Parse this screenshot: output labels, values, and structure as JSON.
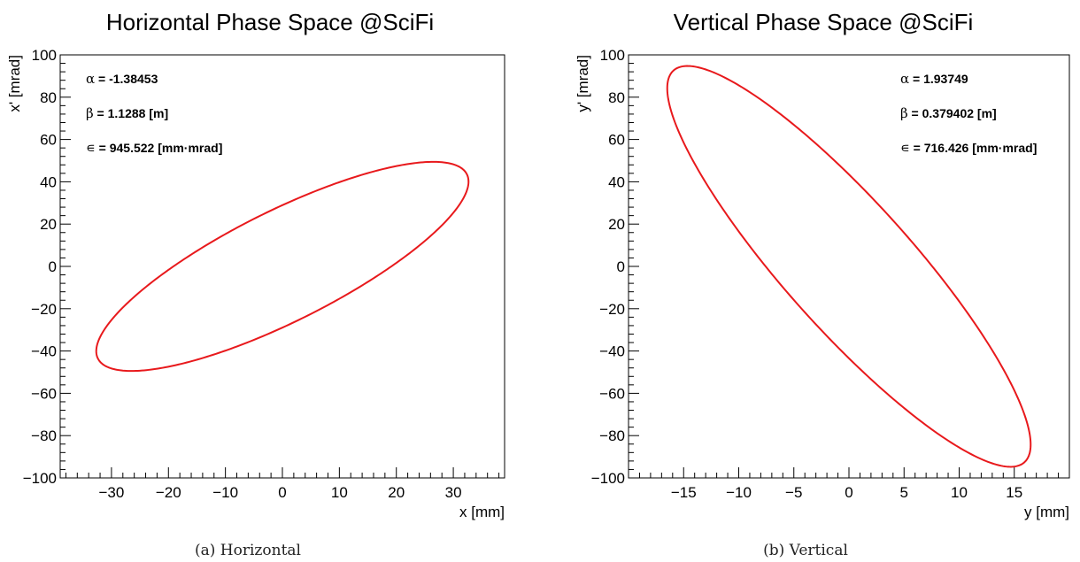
{
  "chart_data": [
    {
      "type": "line",
      "title": "Horizontal Phase Space @SciFi",
      "xlabel": "x [mm]",
      "ylabel": "x' [mrad]",
      "xlim": [
        -39,
        39
      ],
      "ylim": [
        -100,
        100
      ],
      "xticks": [
        -30,
        -20,
        -10,
        0,
        10,
        20,
        30
      ],
      "xtick_labels": [
        "−30",
        "−20",
        "−10",
        "0",
        "10",
        "20",
        "30"
      ],
      "yticks": [
        -100,
        -80,
        -60,
        -40,
        -20,
        0,
        20,
        40,
        60,
        80,
        100
      ],
      "ytick_labels": [
        "−100",
        "−80",
        "−60",
        "−40",
        "−20",
        "0",
        "20",
        "40",
        "60",
        "80",
        "100"
      ],
      "grid": false,
      "series_color": "#e8191c",
      "ellipse": {
        "alpha": -1.38453,
        "beta": 1.1288,
        "emittance": 945.522
      },
      "annotations": [
        {
          "symbol": "α",
          "text": " = -1.38453"
        },
        {
          "symbol": "β",
          "text": " = 1.1288 [m]"
        },
        {
          "symbol": "∊",
          "text": " = 945.522 [mm·mrad]"
        }
      ]
    },
    {
      "type": "line",
      "title": "Vertical Phase Space @SciFi",
      "xlabel": "y [mm]",
      "ylabel": "y' [mrad]",
      "xlim": [
        -20,
        20
      ],
      "ylim": [
        -100,
        100
      ],
      "xticks": [
        -15,
        -10,
        -5,
        0,
        5,
        10,
        15
      ],
      "xtick_labels": [
        "−15",
        "−10",
        "−5",
        "0",
        "5",
        "10",
        "15"
      ],
      "yticks": [
        -100,
        -80,
        -60,
        -40,
        -20,
        0,
        20,
        40,
        60,
        80,
        100
      ],
      "ytick_labels": [
        "−100",
        "−80",
        "−60",
        "−40",
        "−20",
        "0",
        "20",
        "40",
        "60",
        "80",
        "100"
      ],
      "grid": false,
      "series_color": "#e8191c",
      "ellipse": {
        "alpha": 1.93749,
        "beta": 0.379402,
        "emittance": 716.426
      },
      "annotations": [
        {
          "symbol": "α",
          "text": " = 1.93749"
        },
        {
          "symbol": "β",
          "text": " = 0.379402 [m]"
        },
        {
          "symbol": "∊",
          "text": " = 716.426 [mm·mrad]"
        }
      ]
    }
  ],
  "captions": {
    "horizontal": "(a) Horizontal",
    "vertical": "(b) Vertical"
  }
}
